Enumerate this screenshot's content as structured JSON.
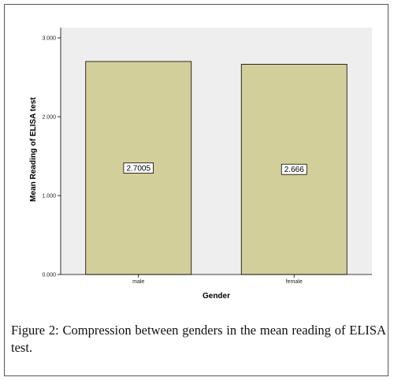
{
  "chart_data": {
    "type": "bar",
    "categories": [
      "male",
      "female"
    ],
    "values": [
      2.7005,
      2.666
    ],
    "data_labels": [
      "2.7005",
      "2.666"
    ],
    "xlabel": "Gender",
    "ylabel": "Mean Reading of ELISA test",
    "ylim": [
      0,
      3
    ],
    "yticks": [
      0,
      1,
      2,
      3
    ],
    "ytick_labels": [
      "0.000",
      "1.000",
      "2.000",
      "3.000"
    ],
    "grid": false,
    "colors": {
      "bar_fill": "#d3cf9a",
      "plot_background": "#eeeeee"
    }
  },
  "caption": {
    "label": "Figure 2:",
    "text": "Compression between genders in the mean reading of ELISA test."
  }
}
